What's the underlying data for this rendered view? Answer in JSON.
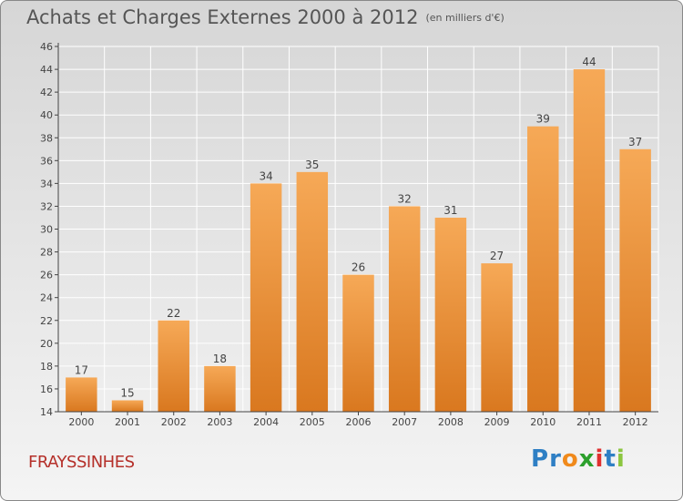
{
  "title": "Achats et Charges Externes 2000 à 2012",
  "subtitle": "(en milliers d'€)",
  "location": "FRAYSSINHES",
  "brand": {
    "letters": [
      "P",
      "r",
      "o",
      "x",
      "i",
      "t",
      "i"
    ],
    "colors": [
      "#2e7fc4",
      "#2e7fc4",
      "#f08a1c",
      "#2ca02c",
      "#e03030",
      "#2e7fc4",
      "#8cc63f"
    ]
  },
  "colors": {
    "bar_light": "#f6a957",
    "bar_dark": "#d9781f",
    "grid": "#ffffff"
  },
  "chart_data": {
    "type": "bar",
    "title": "Achats et Charges Externes 2000 à 2012",
    "subtitle": "(en milliers d'€)",
    "categories": [
      "2000",
      "2001",
      "2002",
      "2003",
      "2004",
      "2005",
      "2006",
      "2007",
      "2008",
      "2009",
      "2010",
      "2011",
      "2012"
    ],
    "values": [
      17,
      15,
      22,
      18,
      34,
      35,
      26,
      32,
      31,
      27,
      39,
      44,
      37
    ],
    "ylim": [
      14,
      46
    ],
    "yticks": [
      14,
      16,
      18,
      20,
      22,
      24,
      26,
      28,
      30,
      32,
      34,
      36,
      38,
      40,
      42,
      44,
      46
    ],
    "grid": true
  }
}
